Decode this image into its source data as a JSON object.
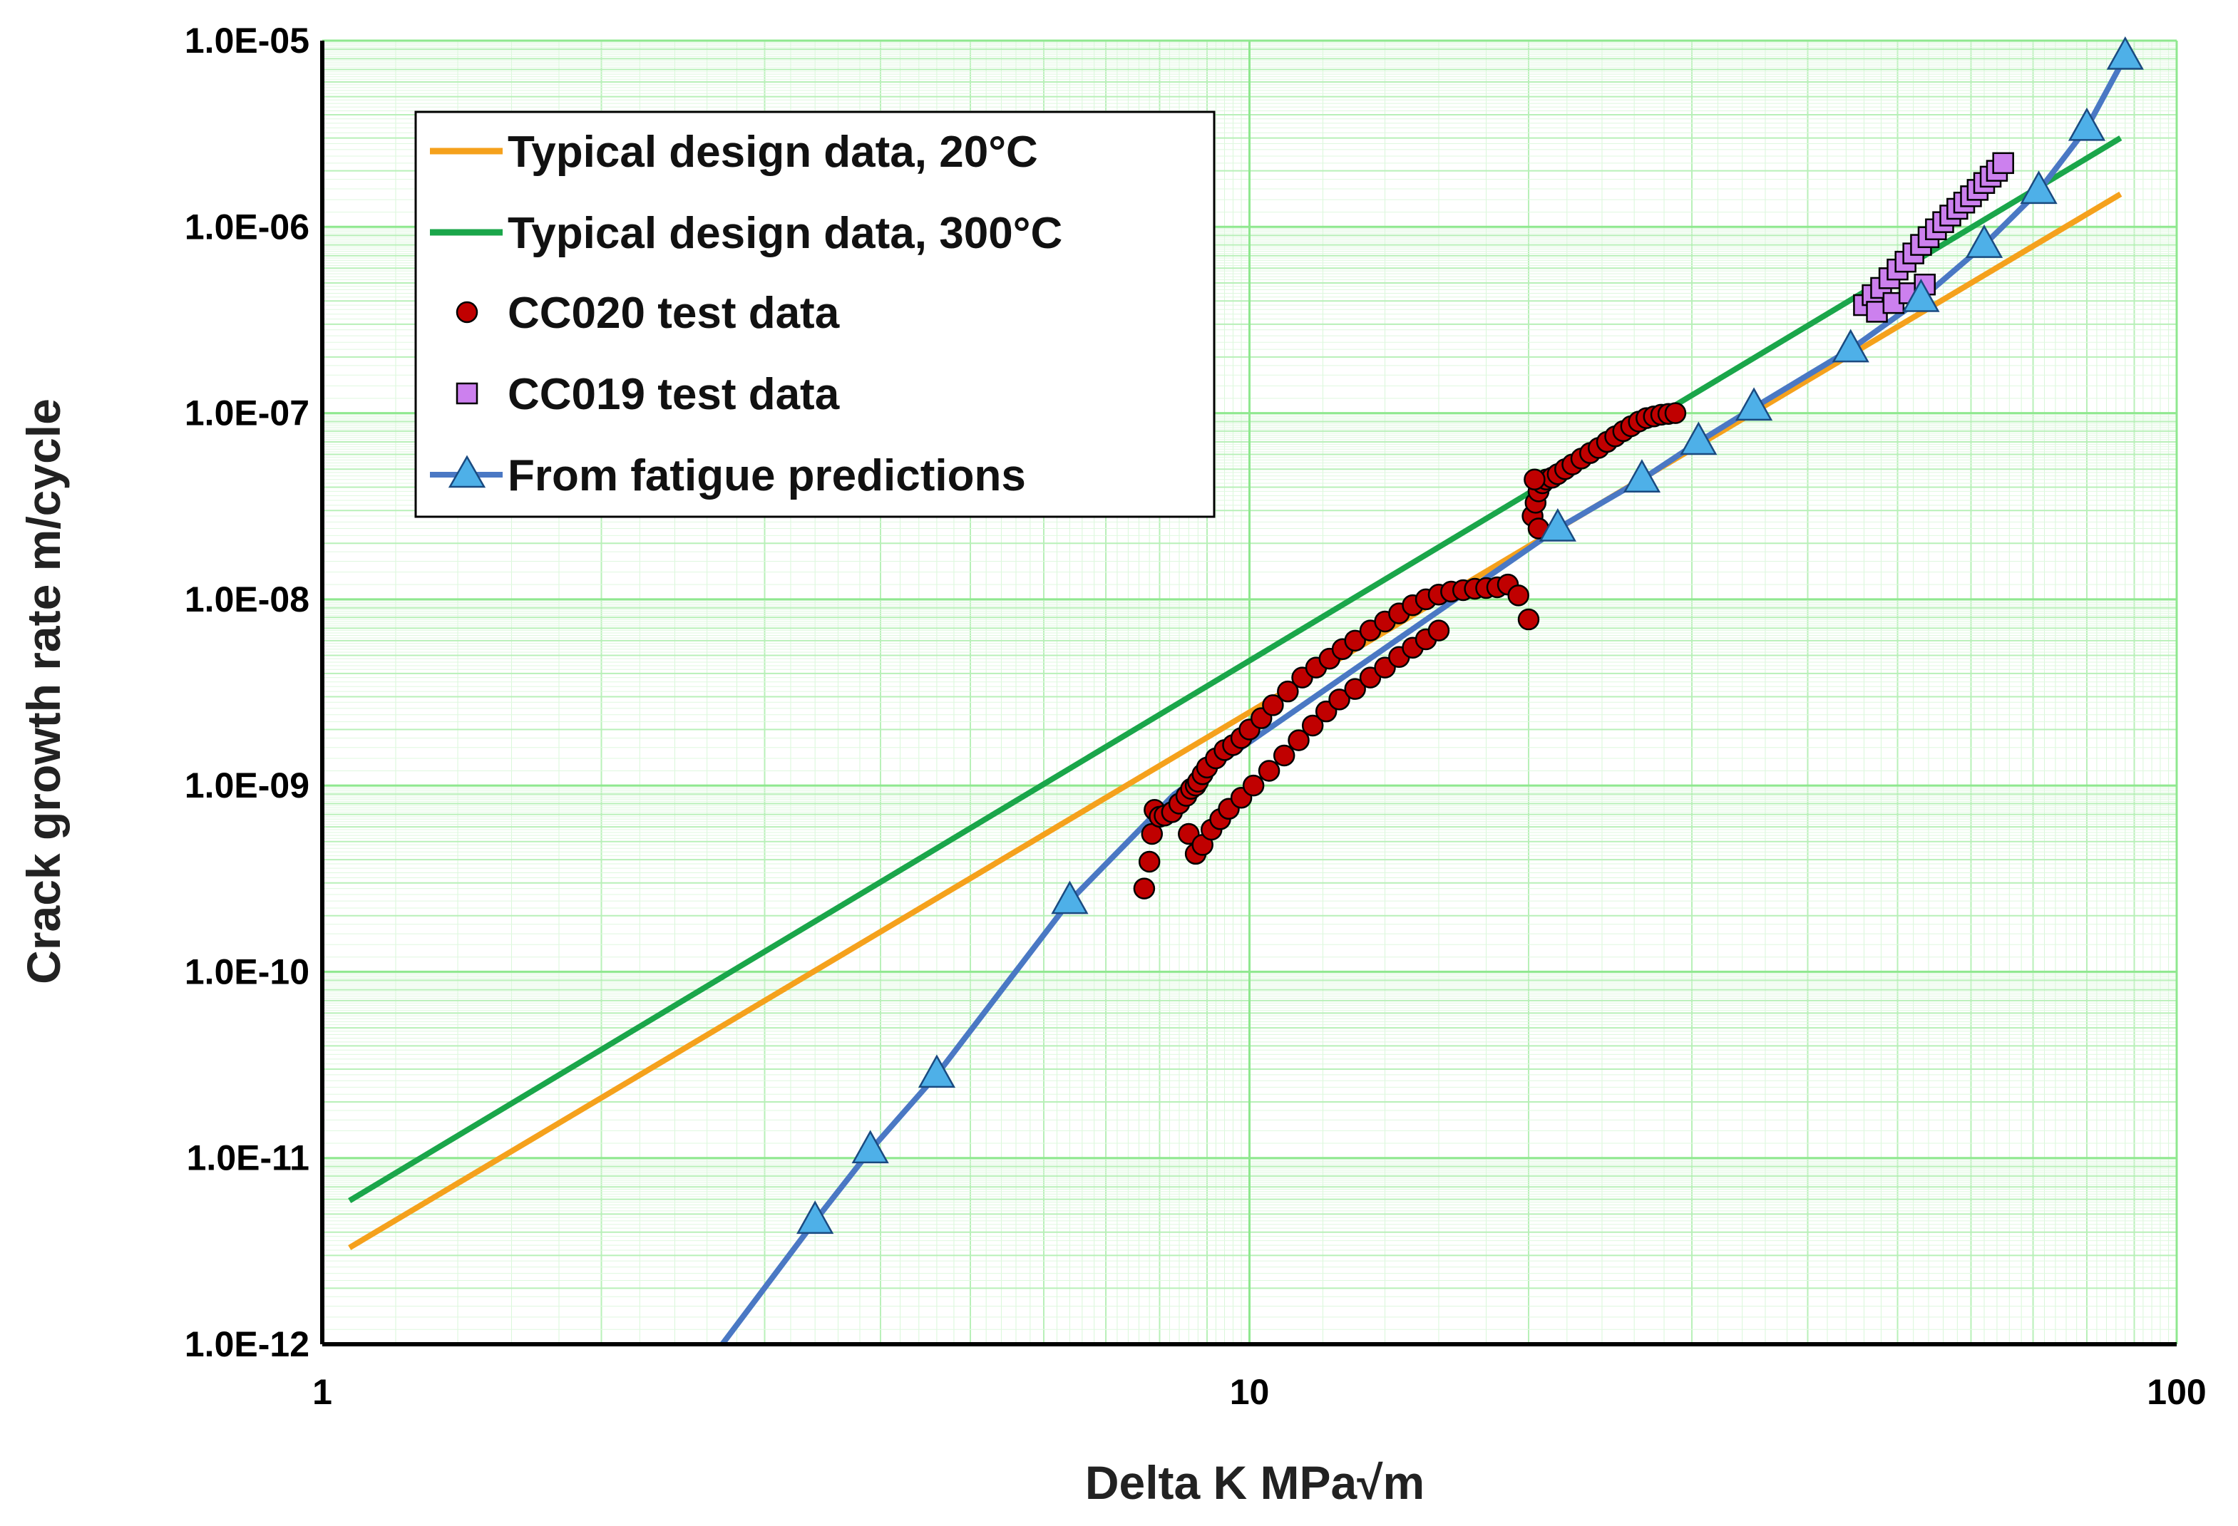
{
  "chart_data": {
    "type": "scatter",
    "title": "",
    "xlabel": "Delta K MPa√m",
    "ylabel": "Crack growth rate m/cycle",
    "x_scale": "log",
    "y_scale": "log",
    "xlim": [
      1,
      100
    ],
    "ylim": [
      1e-12,
      1e-05
    ],
    "x_tick_labels": [
      "1",
      "10",
      "100"
    ],
    "y_tick_labels": [
      "1.0E-12",
      "1.0E-11",
      "1.0E-10",
      "1.0E-09",
      "1.0E-08",
      "1.0E-07",
      "1.0E-06",
      "1.0E-05"
    ],
    "grid": "major and minor gridlines, light green",
    "legend_position": "top-left, inside plot",
    "colors": {
      "design_20": "#f5a11c",
      "design_300": "#1aa64a",
      "cc020": "#c00000",
      "cc019": "#cc80ee",
      "fatigue_line": "#4a78c4",
      "fatigue_marker": "#4eb0e8",
      "grid": "#b8f0b8"
    },
    "series": [
      {
        "name": "Typical design data, 20°C",
        "style": "line",
        "x": [
          1.07,
          87
        ],
        "y": [
          3.3e-12,
          1.5e-06
        ]
      },
      {
        "name": "Typical design data, 300°C",
        "style": "line",
        "x": [
          1.07,
          87
        ],
        "y": [
          5.9e-12,
          3e-06
        ]
      },
      {
        "name": "CC020 test data",
        "style": "markers",
        "marker": "circle",
        "x": [
          7.7,
          7.8,
          7.85,
          7.9,
          8.0,
          8.1,
          8.25,
          8.4,
          8.55,
          8.65,
          8.75,
          8.8,
          8.9,
          9.0,
          9.2,
          9.4,
          9.6,
          9.8,
          10.0,
          10.3,
          10.6,
          11.0,
          11.4,
          11.8,
          12.2,
          12.6,
          13.0,
          13.5,
          14.0,
          14.5,
          15.0,
          15.5,
          16.0,
          16.5,
          17.0,
          17.5,
          18.0,
          18.5,
          19.0,
          19.5,
          20.0,
          8.6,
          8.75,
          8.9,
          9.1,
          9.3,
          9.5,
          9.8,
          10.1,
          10.5,
          10.9,
          11.3,
          11.7,
          12.1,
          12.5,
          13.0,
          13.5,
          14.0,
          14.5,
          15.0,
          15.5,
          16.0,
          20.2,
          20.35,
          20.5,
          20.7,
          20.9,
          21.2,
          21.5,
          21.9,
          22.3,
          22.8,
          23.3,
          23.8,
          24.3,
          24.8,
          25.3,
          25.8,
          26.3,
          26.8,
          27.3,
          27.8,
          28.3,
          28.8,
          20.3,
          20.5
        ],
        "y": [
          2.8e-10,
          3.9e-10,
          5.5e-10,
          7.4e-10,
          6.8e-10,
          6.9e-10,
          7.2e-10,
          8e-10,
          8.8e-10,
          9.6e-10,
          1e-09,
          1.05e-09,
          1.15e-09,
          1.25e-09,
          1.4e-09,
          1.55e-09,
          1.65e-09,
          1.8e-09,
          2e-09,
          2.3e-09,
          2.7e-09,
          3.2e-09,
          3.8e-09,
          4.3e-09,
          4.8e-09,
          5.4e-09,
          6e-09,
          6.8e-09,
          7.6e-09,
          8.4e-09,
          9.3e-09,
          1e-08,
          1.06e-08,
          1.1e-08,
          1.12e-08,
          1.14e-08,
          1.15e-08,
          1.16e-08,
          1.2e-08,
          1.05e-08,
          7.8e-09,
          5.5e-10,
          4.3e-10,
          4.8e-10,
          5.8e-10,
          6.6e-10,
          7.5e-10,
          8.6e-10,
          1e-09,
          1.2e-09,
          1.45e-09,
          1.75e-09,
          2.1e-09,
          2.5e-09,
          2.9e-09,
          3.3e-09,
          3.8e-09,
          4.3e-09,
          4.9e-09,
          5.5e-09,
          6.1e-09,
          6.8e-09,
          2.8e-08,
          3.3e-08,
          3.8e-08,
          4.2e-08,
          4.4e-08,
          4.5e-08,
          4.7e-08,
          5e-08,
          5.3e-08,
          5.7e-08,
          6.1e-08,
          6.5e-08,
          7e-08,
          7.5e-08,
          8e-08,
          8.5e-08,
          9e-08,
          9.4e-08,
          9.6e-08,
          9.8e-08,
          9.9e-08,
          1e-07,
          4.4e-08,
          2.4e-08
        ]
      },
      {
        "name": "CC019 test data",
        "style": "markers",
        "marker": "square",
        "x": [
          46.0,
          47.0,
          48.0,
          49.0,
          50.0,
          51.0,
          52.0,
          53.0,
          54.0,
          55.0,
          56.0,
          57.0,
          58.0,
          59.0,
          60.0,
          61.0,
          62.0,
          63.0,
          64.0,
          65.0,
          47.5,
          49.5,
          51.5,
          53.5
        ],
        "y": [
          3.8e-07,
          4.3e-07,
          4.7e-07,
          5.3e-07,
          5.9e-07,
          6.5e-07,
          7.2e-07,
          8e-07,
          8.8e-07,
          9.7e-07,
          1.06e-06,
          1.15e-06,
          1.25e-06,
          1.35e-06,
          1.46e-06,
          1.58e-06,
          1.72e-06,
          1.86e-06,
          2e-06,
          2.2e-06,
          3.5e-07,
          3.9e-07,
          4.4e-07,
          4.9e-07
        ]
      },
      {
        "name": "From fatigue predictions",
        "style": "line+markers",
        "marker": "triangle",
        "line_x": [
          2.7,
          3.4,
          3.9,
          4.6,
          6.4,
          8.3,
          21.5,
          26.5,
          30.5,
          35.0,
          44.5,
          53.0,
          62.0,
          71.0,
          80.0,
          88.0
        ],
        "line_y": [
          1e-12,
          4.6e-12,
          1.1e-11,
          2.8e-11,
          2.4e-10,
          9e-10,
          2.4e-08,
          4.4e-08,
          7e-08,
          1.07e-07,
          2.2e-07,
          4.1e-07,
          8e-07,
          1.56e-06,
          3.4e-06,
          8.2e-06
        ],
        "x": [
          3.4,
          3.9,
          4.6,
          6.4,
          21.5,
          26.5,
          30.5,
          35.0,
          44.5,
          53.0,
          62.0,
          71.0,
          80.0,
          88.0
        ],
        "y": [
          4.6e-12,
          1.1e-11,
          2.8e-11,
          2.4e-10,
          2.4e-08,
          4.4e-08,
          7e-08,
          1.07e-07,
          2.2e-07,
          4.1e-07,
          8e-07,
          1.56e-06,
          3.4e-06,
          8.2e-06
        ]
      }
    ]
  }
}
